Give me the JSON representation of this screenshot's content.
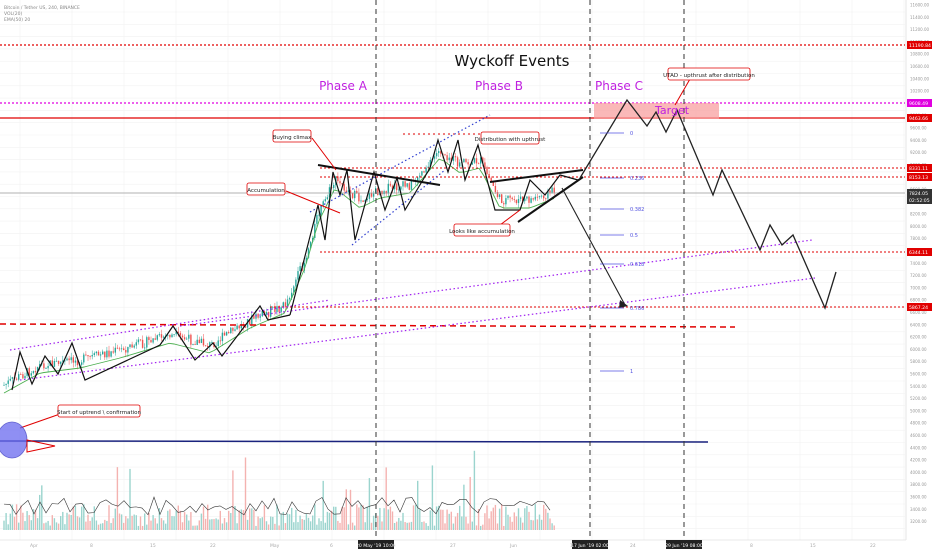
{
  "chart_data": {
    "type": "candlestick",
    "title": "Wyckoff Events",
    "symbol_header": [
      "Bitcoin / Tether US, 240, BINANCE",
      "VOL(20)",
      "EMA(50) 20"
    ],
    "phases": [
      "Phase A",
      "Phase B",
      "Phase C"
    ],
    "annotations": {
      "buying_climax": "Buying climax",
      "accumulation": "Accumulation",
      "distribution": "Distribution with upthrust",
      "looks_like_accumulation": "Looks like accumulation",
      "start_uptrend": "Start of uptrend \\ confirmation",
      "utad": "UTAD - upthrust after distribution",
      "target": "Target"
    },
    "fib_levels": [
      "0",
      "0.236",
      "0.382",
      "0.5",
      "0.618",
      "0.786",
      "1"
    ],
    "price_axis_ticks": [
      "11600.00",
      "11400.00",
      "11200.00",
      "11000.00",
      "10800.00",
      "10600.00",
      "10400.00",
      "10200.00",
      "10000.00",
      "9800.00",
      "9600.00",
      "9400.00",
      "9200.00",
      "9000.00",
      "8800.00",
      "8600.00",
      "8400.00",
      "8200.00",
      "8000.00",
      "7800.00",
      "7600.00",
      "7400.00",
      "7200.00",
      "7000.00",
      "6800.00",
      "6600.00",
      "6400.00",
      "6200.00",
      "6000.00",
      "5800.00",
      "5600.00",
      "5400.00",
      "5200.00",
      "5000.00",
      "4800.00",
      "4600.00",
      "4400.00",
      "4200.00",
      "4000.00",
      "3800.00",
      "3600.00",
      "3400.00",
      "3200.00"
    ],
    "price_labels": {
      "red_top": "11190.84",
      "magenta": "9608.49",
      "red_2": "9463.66",
      "red_3": "8331.11",
      "red_4": "8153.13",
      "last_price": "7824.05",
      "countdown": "02:52:05",
      "red_5": "6344.11",
      "red_6": "5867.24"
    },
    "time_axis_ticks": [
      "Apr",
      "8",
      "15",
      "22",
      "May",
      "6",
      "13",
      "27",
      "Jun",
      "10",
      "24",
      "Jul",
      "8",
      "15",
      "22"
    ],
    "time_labels": [
      "20 May '19  10:00",
      "17 Jun '19  02:00",
      "29 Jun '19  08:00"
    ],
    "colors": {
      "up": "#26a69a",
      "down": "#ef5350",
      "red_line": "#e00000",
      "magenta": "#e000e0",
      "blue": "#1a237e",
      "purple_dotted": "#a020f0",
      "phase_text": "#c020e0",
      "fib": "#5050e0"
    }
  }
}
